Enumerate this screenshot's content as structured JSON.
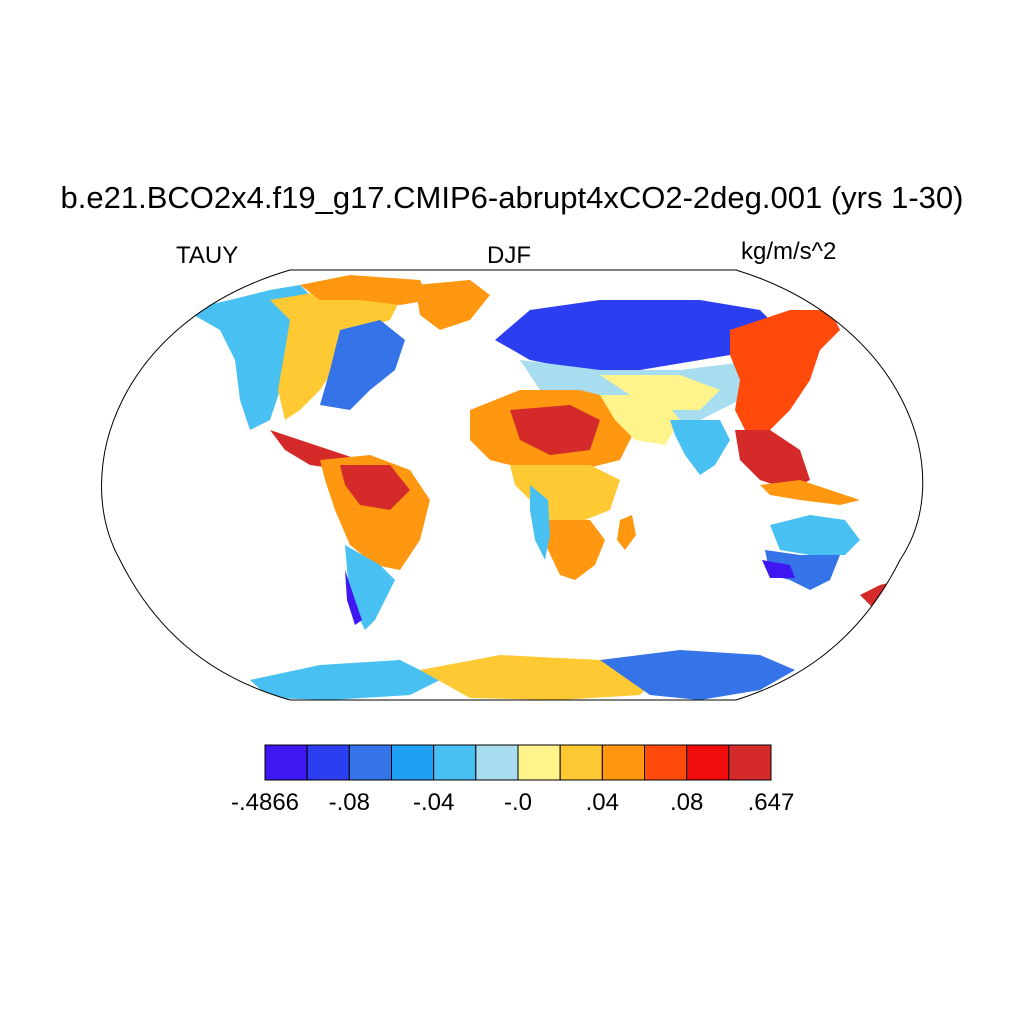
{
  "title": "b.e21.BCO2x4.f19_g17.CMIP6-abrupt4xCO2-2deg.001 (yrs 1-30)",
  "left_label": "TAUY",
  "center_label": "DJF",
  "right_label": "kg/m/s^2",
  "colorbar": {
    "colors": [
      "#3f17f2",
      "#2b3ef0",
      "#3473e8",
      "#1ea0f5",
      "#48c0f2",
      "#a8dcef",
      "#fff38c",
      "#ffc933",
      "#ff9710",
      "#ff4a0c",
      "#f00c0c",
      "#d42a2a"
    ],
    "labels": [
      "-.4866",
      "-.08",
      "-.04",
      "-.0",
      ".04",
      ".08",
      ".647"
    ]
  },
  "map": {
    "projection": "Robinson",
    "land_only": true
  }
}
